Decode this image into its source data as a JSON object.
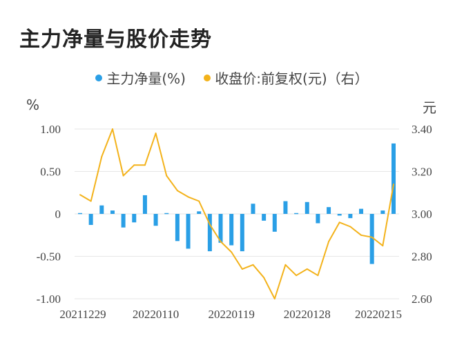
{
  "chart_data": {
    "type": "bar",
    "title": "主力净量与股价走势",
    "legend": [
      {
        "name": "主力净量(%)",
        "color": "#2a9fe6"
      },
      {
        "name": "收盘价:前复权(元)（右）",
        "color": "#f3b21a"
      }
    ],
    "y_unit_left": "%",
    "y_unit_right": "元",
    "ylim_left": [
      -1.0,
      1.0
    ],
    "ylim_right": [
      2.6,
      3.4
    ],
    "yticks_left": [
      "1.00",
      "0.50",
      "0",
      "-0.50",
      "-1.00"
    ],
    "yticks_right": [
      "3.40",
      "3.20",
      "3.00",
      "2.80",
      "2.60"
    ],
    "x_tick_labels": [
      "20211229",
      "20220110",
      "20220119",
      "20220128",
      "20220215"
    ],
    "series": [
      {
        "name": "主力净量(%)",
        "type": "bar",
        "axis": "left",
        "values": [
          0.01,
          -0.13,
          0.1,
          0.04,
          -0.16,
          -0.1,
          0.22,
          -0.14,
          0.01,
          -0.32,
          -0.41,
          0.03,
          -0.44,
          -0.34,
          -0.37,
          -0.44,
          0.12,
          -0.08,
          -0.21,
          0.15,
          0.01,
          0.14,
          -0.11,
          0.08,
          -0.02,
          -0.05,
          0.06,
          -0.59,
          0.04,
          0.83
        ]
      },
      {
        "name": "收盘价:前复权(元)（右）",
        "type": "line",
        "axis": "right",
        "values": [
          3.09,
          3.06,
          3.27,
          3.4,
          3.18,
          3.23,
          3.23,
          3.38,
          3.18,
          3.11,
          3.08,
          3.06,
          2.95,
          2.87,
          2.82,
          2.74,
          2.76,
          2.7,
          2.6,
          2.76,
          2.71,
          2.74,
          2.71,
          2.87,
          2.96,
          2.94,
          2.9,
          2.89,
          2.85,
          3.14
        ]
      }
    ]
  }
}
